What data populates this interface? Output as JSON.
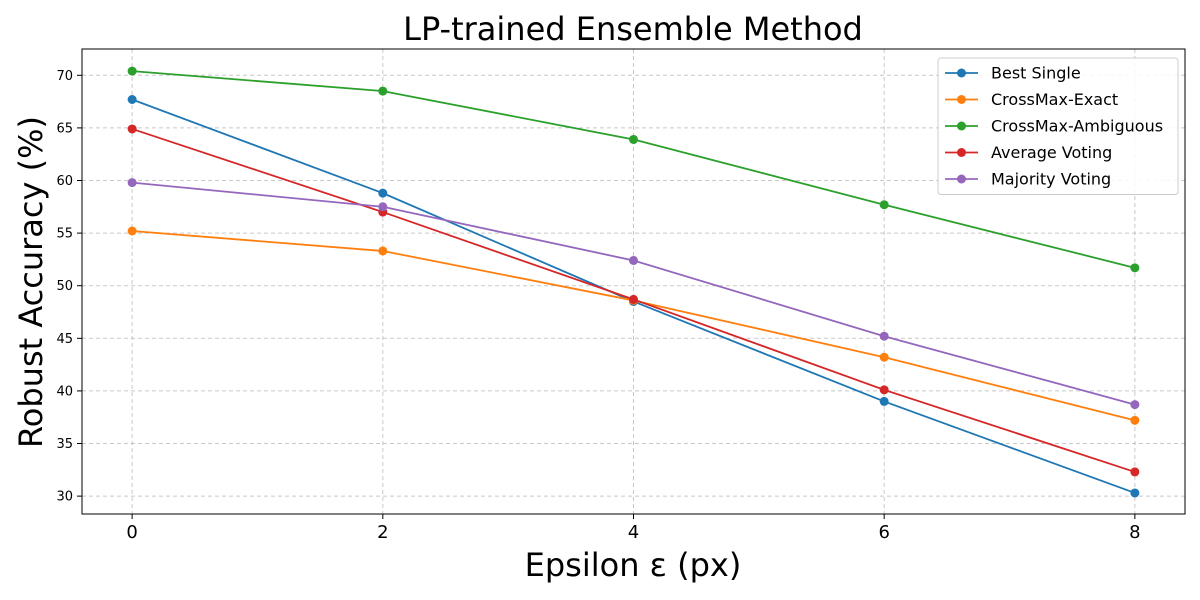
{
  "chart_data": {
    "type": "line",
    "title": "LP-trained Ensemble Method",
    "xlabel": "Epsilon ε (px)",
    "ylabel": "Robust Accuracy (%)",
    "x": [
      0,
      2,
      4,
      6,
      8
    ],
    "xticks": [
      "0",
      "2",
      "4",
      "6",
      "8"
    ],
    "yticks": [
      "30",
      "35",
      "40",
      "45",
      "50",
      "55",
      "60",
      "65",
      "70"
    ],
    "xlim": [
      -0.4,
      8.4
    ],
    "ylim": [
      28.3,
      72.5
    ],
    "grid": true,
    "legend_position": "top-right",
    "series": [
      {
        "name": "Best Single",
        "color": "#1f77b4",
        "values": [
          67.7,
          58.8,
          48.5,
          39.0,
          30.3
        ]
      },
      {
        "name": "CrossMax-Exact",
        "color": "#ff7f0e",
        "values": [
          55.2,
          53.3,
          48.6,
          43.2,
          37.2
        ]
      },
      {
        "name": "CrossMax-Ambiguous",
        "color": "#2ca02c",
        "values": [
          70.4,
          68.5,
          63.9,
          57.7,
          51.7
        ]
      },
      {
        "name": "Average Voting",
        "color": "#d62728",
        "values": [
          64.9,
          57.0,
          48.7,
          40.1,
          32.3
        ]
      },
      {
        "name": "Majority Voting",
        "color": "#9467bd",
        "values": [
          59.8,
          57.5,
          52.4,
          45.2,
          38.7
        ]
      }
    ]
  }
}
